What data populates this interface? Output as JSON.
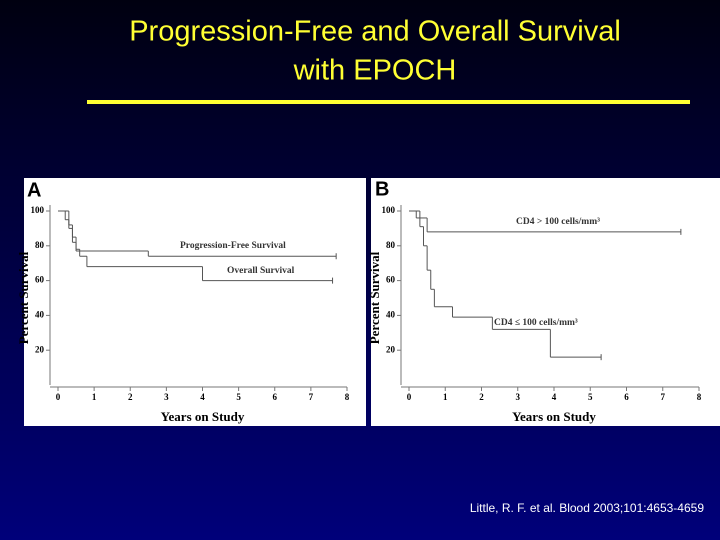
{
  "title": "Progression-Free and Overall Survival",
  "subtitle": "with EPOCH",
  "citation": "Little, R. F. et al. Blood 2003;101:4653-4659",
  "chart_data": [
    {
      "type": "step",
      "title": "A",
      "x_label": "Years on Study",
      "y_label": "Percent Survival",
      "xlim": [
        0,
        8
      ],
      "ylim": [
        0,
        100
      ],
      "xticks": [
        0,
        1,
        2,
        3,
        4,
        5,
        6,
        7,
        8
      ],
      "yticks": [
        20,
        40,
        60,
        80,
        100
      ],
      "series": [
        {
          "name": "Progression-Free Survival",
          "color": "#555555",
          "x": [
            0,
            0.2,
            0.3,
            0.4,
            0.5,
            2.5,
            7.7
          ],
          "values": [
            100,
            95,
            90,
            82,
            77,
            74,
            74
          ]
        },
        {
          "name": "Overall Survival",
          "color": "#555555",
          "x": [
            0,
            0.3,
            0.4,
            0.5,
            0.6,
            0.8,
            4.0,
            7.6
          ],
          "values": [
            100,
            92,
            85,
            78,
            74,
            68,
            60,
            60
          ]
        }
      ]
    },
    {
      "type": "step",
      "title": "B",
      "x_label": "Years on Study",
      "y_label": "Percent Survival",
      "xlim": [
        0,
        8
      ],
      "ylim": [
        0,
        100
      ],
      "xticks": [
        0,
        1,
        2,
        3,
        4,
        5,
        6,
        7,
        8
      ],
      "yticks": [
        20,
        40,
        60,
        80,
        100
      ],
      "series": [
        {
          "name": "CD4 > 100 cells/mm³",
          "color": "#555555",
          "x": [
            0,
            0.2,
            0.5,
            7.5
          ],
          "values": [
            100,
            96,
            88,
            88
          ]
        },
        {
          "name": "CD4 ≤ 100 cells/mm³",
          "color": "#555555",
          "x": [
            0,
            0.3,
            0.4,
            0.5,
            0.6,
            0.7,
            1.2,
            2.3,
            3.9,
            5.3
          ],
          "values": [
            100,
            91,
            80,
            66,
            55,
            45,
            39,
            32,
            16,
            16
          ]
        }
      ]
    }
  ]
}
